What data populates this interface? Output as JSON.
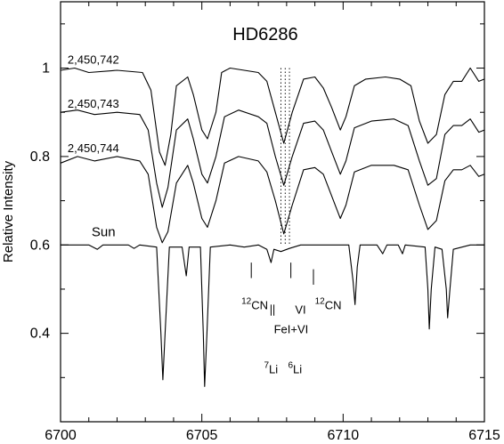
{
  "chart_data": {
    "type": "line",
    "title": "HD6286",
    "xlabel": "",
    "ylabel": "Relative Intensity",
    "xlim": [
      6700,
      6715
    ],
    "ylim": [
      0.2,
      1.15
    ],
    "grid": false,
    "x_ticks": [
      "6700",
      "6705",
      "6710",
      "6715"
    ],
    "y_ticks": [
      "0.4",
      "0.6",
      "0.8",
      "1"
    ],
    "series": [
      {
        "name": "2,450,742",
        "points": [
          [
            6700.0,
            0.995
          ],
          [
            6700.5,
            1.0
          ],
          [
            6701.0,
            0.99
          ],
          [
            6702.0,
            0.995
          ],
          [
            6702.9,
            0.99
          ],
          [
            6703.2,
            0.95
          ],
          [
            6703.5,
            0.81
          ],
          [
            6703.7,
            0.78
          ],
          [
            6703.9,
            0.85
          ],
          [
            6704.1,
            0.96
          ],
          [
            6704.5,
            0.98
          ],
          [
            6704.7,
            0.94
          ],
          [
            6705.0,
            0.86
          ],
          [
            6705.2,
            0.84
          ],
          [
            6705.5,
            0.9
          ],
          [
            6705.7,
            0.99
          ],
          [
            6706.0,
            1.0
          ],
          [
            6706.5,
            0.995
          ],
          [
            6707.0,
            0.99
          ],
          [
            6707.3,
            0.97
          ],
          [
            6707.6,
            0.9
          ],
          [
            6707.9,
            0.83
          ],
          [
            6708.2,
            0.9
          ],
          [
            6708.6,
            0.975
          ],
          [
            6709.0,
            0.98
          ],
          [
            6709.3,
            0.955
          ],
          [
            6709.6,
            0.91
          ],
          [
            6709.9,
            0.86
          ],
          [
            6710.1,
            0.89
          ],
          [
            6710.4,
            0.96
          ],
          [
            6710.8,
            0.975
          ],
          [
            6711.5,
            0.98
          ],
          [
            6712.0,
            0.975
          ],
          [
            6712.4,
            0.96
          ],
          [
            6712.7,
            0.88
          ],
          [
            6713.0,
            0.83
          ],
          [
            6713.3,
            0.85
          ],
          [
            6713.6,
            0.94
          ],
          [
            6713.9,
            0.97
          ],
          [
            6714.2,
            0.97
          ],
          [
            6714.5,
            1.0
          ],
          [
            6714.8,
            0.97
          ],
          [
            6715.0,
            0.975
          ]
        ]
      },
      {
        "name": "2,450,743",
        "points": [
          [
            6700.0,
            0.9
          ],
          [
            6700.6,
            0.905
          ],
          [
            6701.2,
            0.895
          ],
          [
            6702.0,
            0.9
          ],
          [
            6702.8,
            0.895
          ],
          [
            6703.1,
            0.86
          ],
          [
            6703.4,
            0.74
          ],
          [
            6703.6,
            0.685
          ],
          [
            6703.8,
            0.73
          ],
          [
            6704.1,
            0.86
          ],
          [
            6704.5,
            0.885
          ],
          [
            6704.7,
            0.84
          ],
          [
            6705.0,
            0.76
          ],
          [
            6705.2,
            0.74
          ],
          [
            6705.5,
            0.8
          ],
          [
            6705.8,
            0.89
          ],
          [
            6706.3,
            0.905
          ],
          [
            6707.0,
            0.89
          ],
          [
            6707.3,
            0.875
          ],
          [
            6707.6,
            0.8
          ],
          [
            6707.9,
            0.735
          ],
          [
            6708.2,
            0.8
          ],
          [
            6708.6,
            0.875
          ],
          [
            6709.0,
            0.88
          ],
          [
            6709.3,
            0.86
          ],
          [
            6709.6,
            0.81
          ],
          [
            6709.9,
            0.76
          ],
          [
            6710.1,
            0.79
          ],
          [
            6710.4,
            0.865
          ],
          [
            6711.0,
            0.88
          ],
          [
            6711.8,
            0.885
          ],
          [
            6712.3,
            0.87
          ],
          [
            6712.7,
            0.79
          ],
          [
            6713.0,
            0.735
          ],
          [
            6713.3,
            0.75
          ],
          [
            6713.6,
            0.85
          ],
          [
            6713.9,
            0.87
          ],
          [
            6714.2,
            0.87
          ],
          [
            6714.5,
            0.885
          ],
          [
            6714.8,
            0.855
          ],
          [
            6715.0,
            0.86
          ]
        ]
      },
      {
        "name": "2,450,744",
        "points": [
          [
            6700.0,
            0.785
          ],
          [
            6700.6,
            0.8
          ],
          [
            6701.2,
            0.79
          ],
          [
            6702.0,
            0.8
          ],
          [
            6702.8,
            0.79
          ],
          [
            6703.1,
            0.76
          ],
          [
            6703.4,
            0.64
          ],
          [
            6703.6,
            0.605
          ],
          [
            6703.8,
            0.63
          ],
          [
            6704.1,
            0.74
          ],
          [
            6704.5,
            0.78
          ],
          [
            6704.7,
            0.74
          ],
          [
            6705.0,
            0.66
          ],
          [
            6705.2,
            0.64
          ],
          [
            6705.5,
            0.7
          ],
          [
            6705.8,
            0.785
          ],
          [
            6706.3,
            0.8
          ],
          [
            6707.0,
            0.79
          ],
          [
            6707.3,
            0.765
          ],
          [
            6707.6,
            0.7
          ],
          [
            6707.9,
            0.625
          ],
          [
            6708.2,
            0.69
          ],
          [
            6708.6,
            0.77
          ],
          [
            6709.0,
            0.775
          ],
          [
            6709.3,
            0.76
          ],
          [
            6709.6,
            0.71
          ],
          [
            6709.9,
            0.66
          ],
          [
            6710.1,
            0.69
          ],
          [
            6710.4,
            0.765
          ],
          [
            6711.0,
            0.78
          ],
          [
            6711.8,
            0.78
          ],
          [
            6712.3,
            0.77
          ],
          [
            6712.7,
            0.69
          ],
          [
            6713.0,
            0.635
          ],
          [
            6713.3,
            0.655
          ],
          [
            6713.6,
            0.745
          ],
          [
            6713.9,
            0.77
          ],
          [
            6714.2,
            0.77
          ],
          [
            6714.5,
            0.78
          ],
          [
            6714.8,
            0.755
          ],
          [
            6715.0,
            0.76
          ]
        ]
      },
      {
        "name": "Sun",
        "points": [
          [
            6700.0,
            0.6
          ],
          [
            6701.0,
            0.6
          ],
          [
            6701.3,
            0.59
          ],
          [
            6701.5,
            0.6
          ],
          [
            6702.4,
            0.6
          ],
          [
            6702.6,
            0.592
          ],
          [
            6702.8,
            0.6
          ],
          [
            6703.4,
            0.595
          ],
          [
            6703.55,
            0.4
          ],
          [
            6703.62,
            0.295
          ],
          [
            6703.7,
            0.4
          ],
          [
            6703.85,
            0.595
          ],
          [
            6704.3,
            0.595
          ],
          [
            6704.45,
            0.53
          ],
          [
            6704.55,
            0.595
          ],
          [
            6704.95,
            0.595
          ],
          [
            6705.05,
            0.4
          ],
          [
            6705.1,
            0.28
          ],
          [
            6705.18,
            0.4
          ],
          [
            6705.3,
            0.595
          ],
          [
            6706.0,
            0.6
          ],
          [
            6706.5,
            0.595
          ],
          [
            6707.0,
            0.6
          ],
          [
            6707.3,
            0.59
          ],
          [
            6707.45,
            0.56
          ],
          [
            6707.55,
            0.59
          ],
          [
            6707.8,
            0.585
          ],
          [
            6708.1,
            0.592
          ],
          [
            6708.5,
            0.6
          ],
          [
            6709.0,
            0.6
          ],
          [
            6710.2,
            0.6
          ],
          [
            6710.35,
            0.52
          ],
          [
            6710.42,
            0.465
          ],
          [
            6710.5,
            0.55
          ],
          [
            6710.6,
            0.6
          ],
          [
            6711.2,
            0.6
          ],
          [
            6711.4,
            0.58
          ],
          [
            6711.55,
            0.6
          ],
          [
            6711.95,
            0.6
          ],
          [
            6712.1,
            0.58
          ],
          [
            6712.2,
            0.6
          ],
          [
            6712.9,
            0.595
          ],
          [
            6713.0,
            0.5
          ],
          [
            6713.05,
            0.41
          ],
          [
            6713.12,
            0.5
          ],
          [
            6713.25,
            0.595
          ],
          [
            6713.5,
            0.59
          ],
          [
            6713.65,
            0.5
          ],
          [
            6713.7,
            0.435
          ],
          [
            6713.78,
            0.5
          ],
          [
            6713.9,
            0.59
          ],
          [
            6714.5,
            0.6
          ],
          [
            6715.0,
            0.6
          ]
        ]
      }
    ],
    "series_labels": [
      {
        "text": "2,450,742",
        "x": 6700.25,
        "y": 1.01
      },
      {
        "text": "2,450,743",
        "x": 6700.25,
        "y": 0.91
      },
      {
        "text": "2,450,744",
        "x": 6700.25,
        "y": 0.81
      },
      {
        "text": "Sun",
        "x": 6701.1,
        "y": 0.62
      }
    ],
    "dotted_lines_x": [
      6707.8,
      6707.95,
      6708.1
    ],
    "line_markers": [
      {
        "x": 6706.75,
        "y_top": 0.56,
        "y_bottom": 0.525
      },
      {
        "x": 6707.45,
        "y_top": 0.465,
        "y_bottom": 0.44
      },
      {
        "x": 6707.55,
        "y_top": 0.465,
        "y_bottom": 0.44
      },
      {
        "x": 6708.15,
        "y_top": 0.56,
        "y_bottom": 0.525
      },
      {
        "x": 6708.95,
        "y_top": 0.545,
        "y_bottom": 0.51
      }
    ],
    "annotations": [
      {
        "main": "12",
        "sub": "CN",
        "x": 6706.4,
        "y": 0.455
      },
      {
        "main": "VI",
        "sub": "",
        "x": 6708.3,
        "y": 0.445
      },
      {
        "main": "12",
        "sub": "CN",
        "x": 6709.0,
        "y": 0.455
      },
      {
        "main": "FeI+VI",
        "sub": "",
        "x": 6707.55,
        "y": 0.4
      },
      {
        "main": "7",
        "sub": "Li",
        "x": 6707.2,
        "y": 0.31
      },
      {
        "main": "6",
        "sub": "Li",
        "x": 6708.05,
        "y": 0.31
      }
    ]
  }
}
